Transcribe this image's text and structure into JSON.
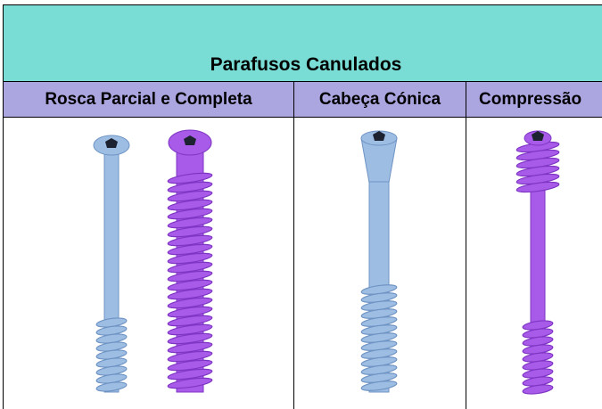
{
  "table": {
    "title": "Parafusos Canulados",
    "columns": [
      "Rosca Parcial e Completa",
      "Cabeça Cónica",
      "Compressão"
    ]
  }
}
